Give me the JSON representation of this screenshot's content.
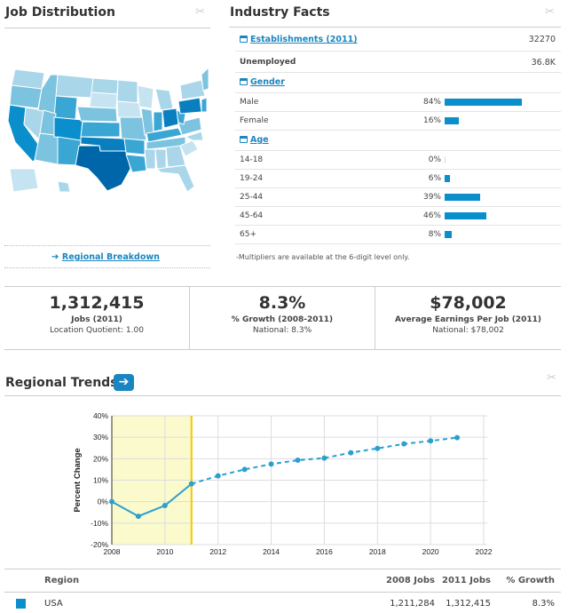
{
  "job_distribution": {
    "title": "Job Distribution",
    "link": "Regional Breakdown"
  },
  "industry_facts": {
    "title": "Industry Facts",
    "establishments": {
      "label": "Establishments (2011)",
      "value": "32270"
    },
    "unemployed": {
      "label": "Unemployed",
      "value": "36.8K"
    },
    "gender": {
      "label": "Gender",
      "items": [
        {
          "label": "Male",
          "pct": "84%",
          "value": 84
        },
        {
          "label": "Female",
          "pct": "16%",
          "value": 16
        }
      ]
    },
    "age": {
      "label": "Age",
      "items": [
        {
          "label": "14-18",
          "pct": "0%",
          "value": 0
        },
        {
          "label": "19-24",
          "pct": "6%",
          "value": 6
        },
        {
          "label": "25-44",
          "pct": "39%",
          "value": 39
        },
        {
          "label": "45-64",
          "pct": "46%",
          "value": 46
        },
        {
          "label": "65+",
          "pct": "8%",
          "value": 8
        }
      ]
    },
    "note": "-Multipliers are available at the 6-digit level only."
  },
  "stats": [
    {
      "big": "1,312,415",
      "sub": "Jobs (2011)",
      "small": "Location Quotient: 1.00"
    },
    {
      "big": "8.3%",
      "sub": "% Growth (2008-2011)",
      "small": "National: 8.3%"
    },
    {
      "big": "$78,002",
      "sub": "Average Earnings Per Job (2011)",
      "small": "National: $78,002"
    }
  ],
  "regional_trends": {
    "title": "Regional Trends"
  },
  "chart_data": {
    "type": "line",
    "ylabel": "Percent Change",
    "xlabel": "",
    "xlim": [
      2008,
      2022
    ],
    "ylim": [
      -20,
      40
    ],
    "xticks": [
      "2008",
      "2010",
      "2012",
      "2014",
      "2016",
      "2018",
      "2020",
      "2022"
    ],
    "yticks": [
      "40%",
      "30%",
      "20%",
      "10%",
      "0%",
      "-10%",
      "-20%"
    ],
    "grid": true,
    "highlight_range": [
      2008,
      2011
    ],
    "x": [
      2008,
      2009,
      2010,
      2011,
      2012,
      2013,
      2014,
      2015,
      2016,
      2017,
      2018,
      2019,
      2020,
      2021
    ],
    "y": [
      0,
      -6.8,
      -1.8,
      8.3,
      12,
      15,
      17.5,
      19.3,
      20.3,
      22.8,
      24.8,
      26.9,
      28.3,
      29.8
    ],
    "actual_through": 2011,
    "color": "#2a9fd0"
  },
  "table": {
    "headers": [
      "Region",
      "2008 Jobs",
      "2011 Jobs",
      "% Growth"
    ],
    "rows": [
      {
        "region": "USA",
        "jobs2008": "1,211,284",
        "jobs2011": "1,312,415",
        "growth": "8.3%",
        "color": "#0a8fcc"
      }
    ]
  }
}
